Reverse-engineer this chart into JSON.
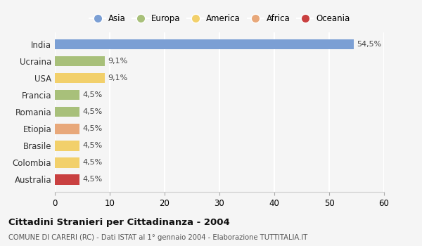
{
  "categories": [
    "India",
    "Ucraina",
    "USA",
    "Francia",
    "Romania",
    "Etiopia",
    "Brasile",
    "Colombia",
    "Australia"
  ],
  "values": [
    54.5,
    9.1,
    9.1,
    4.5,
    4.5,
    4.5,
    4.5,
    4.5,
    4.5
  ],
  "labels": [
    "54,5%",
    "9,1%",
    "9,1%",
    "4,5%",
    "4,5%",
    "4,5%",
    "4,5%",
    "4,5%",
    "4,5%"
  ],
  "bar_colors": [
    "#7b9fd4",
    "#a8c07a",
    "#f2d06b",
    "#a8c07a",
    "#a8c07a",
    "#e8a87a",
    "#f2d06b",
    "#f2d06b",
    "#c94040"
  ],
  "legend": [
    {
      "label": "Asia",
      "color": "#7b9fd4"
    },
    {
      "label": "Europa",
      "color": "#a8c07a"
    },
    {
      "label": "America",
      "color": "#f2d06b"
    },
    {
      "label": "Africa",
      "color": "#e8a87a"
    },
    {
      "label": "Oceania",
      "color": "#c94040"
    }
  ],
  "xlim": [
    0,
    60
  ],
  "xticks": [
    0,
    10,
    20,
    30,
    40,
    50,
    60
  ],
  "title": "Cittadini Stranieri per Cittadinanza - 2004",
  "subtitle": "COMUNE DI CARERI (RC) - Dati ISTAT al 1° gennaio 2004 - Elaborazione TUTTITALIA.IT",
  "background_color": "#f5f5f5",
  "grid_color": "#ffffff"
}
